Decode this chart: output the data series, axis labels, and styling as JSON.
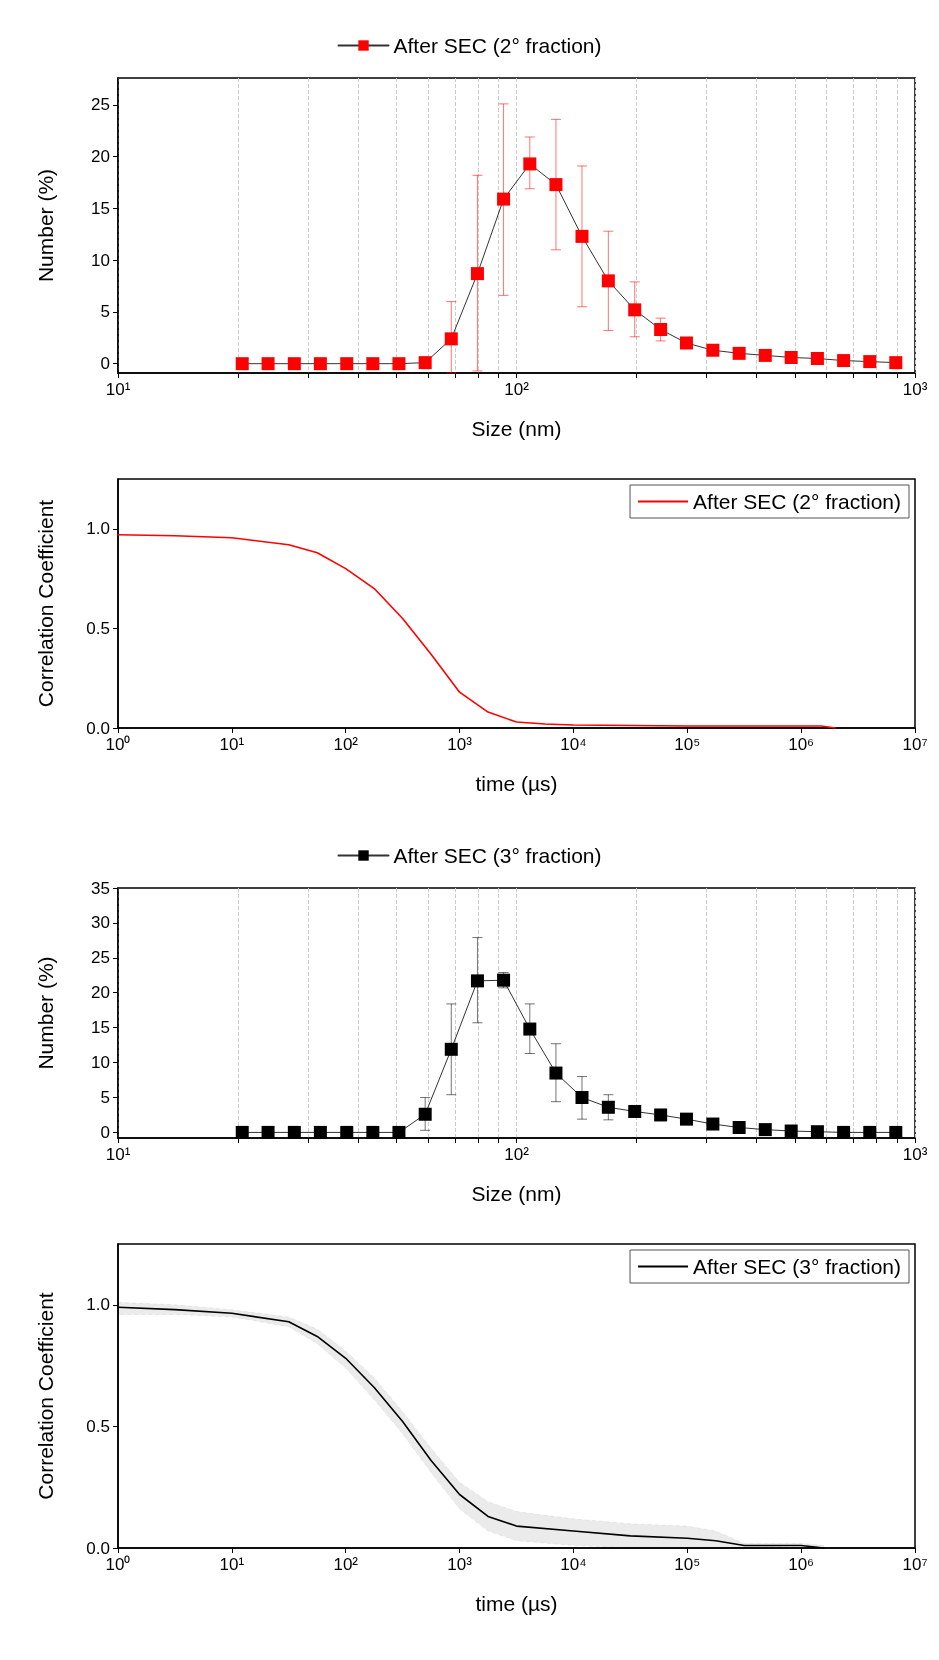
{
  "chart_data": [
    {
      "type": "line",
      "xlabel": "Size (nm)",
      "ylabel": "Number (%)",
      "log": "x",
      "grid": "x",
      "legend": "top",
      "marker": "square",
      "line_style": "solid",
      "x": [
        20.5,
        23.8,
        27.7,
        32.2,
        37.5,
        43.6,
        50.7,
        59.0,
        68.6,
        79.8,
        92.8,
        108,
        125.6,
        146,
        170,
        198,
        230,
        267,
        311,
        362,
        421,
        489,
        569,
        662,
        770,
        895
      ],
      "series": [
        {
          "name": "After SEC (2° fraction)",
          "color": "#ff0000",
          "values": [
            0,
            0,
            0,
            0,
            0,
            0,
            0,
            0.1,
            2.4,
            8.7,
            15.9,
            19.3,
            17.3,
            12.3,
            8.0,
            5.2,
            3.3,
            2.0,
            1.3,
            1.0,
            0.8,
            0.6,
            0.5,
            0.3,
            0.2,
            0.1
          ],
          "errors": [
            null,
            null,
            null,
            null,
            null,
            null,
            null,
            null,
            [
              -0.9,
              6.0
            ],
            [
              -0.7,
              18.2
            ],
            [
              6.6,
              25.1
            ],
            [
              16.9,
              21.9
            ],
            [
              11.0,
              23.6
            ],
            [
              5.5,
              19.1
            ],
            [
              3.2,
              12.8
            ],
            [
              2.6,
              7.9
            ],
            [
              2.2,
              4.4
            ],
            null,
            null,
            null,
            null,
            null,
            null,
            null,
            null,
            null
          ]
        }
      ],
      "xlim": [
        10,
        1000
      ],
      "xticks": [
        {
          "value": 10,
          "label": "10¹"
        },
        {
          "value": 20,
          "label": null
        },
        {
          "value": 30,
          "label": null
        },
        {
          "value": 40,
          "label": null
        },
        {
          "value": 50,
          "label": null
        },
        {
          "value": 60,
          "label": null
        },
        {
          "value": 70,
          "label": null
        },
        {
          "value": 80,
          "label": null
        },
        {
          "value": 90,
          "label": null
        },
        {
          "value": 100,
          "label": "10²"
        },
        {
          "value": 200,
          "label": null
        },
        {
          "value": 300,
          "label": null
        },
        {
          "value": 400,
          "label": null
        },
        {
          "value": 500,
          "label": null
        },
        {
          "value": 600,
          "label": null
        },
        {
          "value": 700,
          "label": null
        },
        {
          "value": 800,
          "label": null
        },
        {
          "value": 900,
          "label": null
        },
        {
          "value": 1000,
          "label": "10³"
        }
      ],
      "ylim": [
        -0.9,
        27.6
      ],
      "yticks": [
        0,
        5,
        10,
        15,
        20,
        25
      ]
    },
    {
      "type": "line",
      "xlabel": "time (µs)",
      "ylabel": "Correlation Coefficient",
      "log": "x",
      "legend": "top right",
      "marker": "none",
      "line_style": "solid",
      "x": [
        1,
        3.16,
        10,
        31.6,
        56.2,
        100,
        178,
        316,
        562,
        1000,
        1778,
        3162,
        5623,
        10000,
        100000,
        1000000,
        1500000,
        2000000
      ],
      "series": [
        {
          "name": "After SEC (2° fraction)",
          "color": "#ff0000",
          "values": [
            0.97,
            0.965,
            0.955,
            0.92,
            0.88,
            0.8,
            0.7,
            0.55,
            0.37,
            0.18,
            0.08,
            0.03,
            0.02,
            0.015,
            0.01,
            0.01,
            0.01,
            0.0
          ]
        }
      ],
      "xlim": [
        1,
        10000000
      ],
      "xticks": [
        {
          "value": 1,
          "label": "10⁰"
        },
        {
          "value": 10,
          "label": "10¹"
        },
        {
          "value": 100,
          "label": "10²"
        },
        {
          "value": 1000,
          "label": "10³"
        },
        {
          "value": 10000,
          "label": "10⁴"
        },
        {
          "value": 100000,
          "label": "10⁵"
        },
        {
          "value": 1000000,
          "label": "10⁶"
        },
        {
          "value": 10000000,
          "label": "10⁷"
        }
      ],
      "ylim": [
        0,
        1.25
      ],
      "yticks": [
        {
          "value": 0,
          "label": "0.0"
        },
        {
          "value": 0.5,
          "label": "0.5"
        },
        {
          "value": 1,
          "label": "1.0"
        }
      ]
    },
    {
      "type": "line",
      "xlabel": "Size (nm)",
      "ylabel": "Number (%)",
      "log": "x",
      "grid": "x",
      "legend": "top",
      "marker": "square",
      "line_style": "solid",
      "x": [
        20.5,
        23.8,
        27.7,
        32.2,
        37.5,
        43.6,
        50.7,
        59.0,
        68.6,
        79.8,
        92.8,
        108,
        125.6,
        146,
        170,
        198,
        230,
        267,
        311,
        362,
        421,
        489,
        569,
        662,
        770,
        895
      ],
      "series": [
        {
          "name": "After SEC (3° fraction)",
          "color": "#000000",
          "values": [
            0,
            0,
            0,
            0,
            0,
            0,
            0,
            2.6,
            11.9,
            21.7,
            21.8,
            14.8,
            8.5,
            5.0,
            3.6,
            3.0,
            2.5,
            1.9,
            1.2,
            0.7,
            0.4,
            0.2,
            0.1,
            0,
            0,
            0
          ],
          "errors": [
            null,
            null,
            null,
            null,
            null,
            null,
            null,
            [
              0.3,
              5.0
            ],
            [
              5.4,
              18.4
            ],
            [
              15.7,
              27.9
            ],
            [
              20.7,
              22.9
            ],
            [
              11.3,
              18.4
            ],
            [
              4.4,
              12.7
            ],
            [
              1.9,
              8.0
            ],
            [
              1.8,
              5.4
            ],
            [
              2.2,
              3.8
            ],
            null,
            null,
            null,
            null,
            null,
            null,
            null,
            null,
            null,
            null
          ]
        }
      ],
      "xlim": [
        10,
        1000
      ],
      "xticks": [
        {
          "value": 10,
          "label": "10¹"
        },
        {
          "value": 20,
          "label": null
        },
        {
          "value": 30,
          "label": null
        },
        {
          "value": 40,
          "label": null
        },
        {
          "value": 50,
          "label": null
        },
        {
          "value": 60,
          "label": null
        },
        {
          "value": 70,
          "label": null
        },
        {
          "value": 80,
          "label": null
        },
        {
          "value": 90,
          "label": null
        },
        {
          "value": 100,
          "label": "10²"
        },
        {
          "value": 200,
          "label": null
        },
        {
          "value": 300,
          "label": null
        },
        {
          "value": 400,
          "label": null
        },
        {
          "value": 500,
          "label": null
        },
        {
          "value": 600,
          "label": null
        },
        {
          "value": 700,
          "label": null
        },
        {
          "value": 800,
          "label": null
        },
        {
          "value": 900,
          "label": null
        },
        {
          "value": 1000,
          "label": "10³"
        }
      ],
      "ylim": [
        -0.8,
        35
      ],
      "yticks": [
        0,
        5,
        10,
        15,
        20,
        25,
        30,
        35
      ]
    },
    {
      "type": "line",
      "xlabel": "time (µs)",
      "ylabel": "Correlation Coefficient",
      "log": "x",
      "legend": "top right",
      "marker": "none",
      "line_style": "solid",
      "x": [
        1,
        3.16,
        10,
        31.6,
        56.2,
        100,
        178,
        316,
        562,
        1000,
        1778,
        3162,
        10000,
        31623,
        100000,
        177828,
        316228,
        1000000,
        1584893
      ],
      "series": [
        {
          "name": "After SEC (3° fraction)",
          "color": "#000000",
          "values": [
            0.99,
            0.98,
            0.965,
            0.93,
            0.87,
            0.78,
            0.66,
            0.52,
            0.36,
            0.22,
            0.13,
            0.09,
            0.07,
            0.05,
            0.04,
            0.03,
            0.01,
            0.01,
            0.0
          ],
          "upper": [
            1.01,
            1.0,
            0.98,
            0.95,
            0.9,
            0.81,
            0.7,
            0.56,
            0.41,
            0.27,
            0.19,
            0.15,
            0.12,
            0.1,
            0.09,
            0.07,
            0.02,
            0.02,
            0.01
          ],
          "lower": [
            0.96,
            0.96,
            0.95,
            0.91,
            0.84,
            0.74,
            0.61,
            0.47,
            0.31,
            0.16,
            0.07,
            0.03,
            0.01,
            0.0,
            0.0,
            0.0,
            0.0,
            0.01,
            0.0
          ]
        }
      ],
      "xlim": [
        1,
        10000000
      ],
      "xticks": [
        {
          "value": 1,
          "label": "10⁰"
        },
        {
          "value": 10,
          "label": "10¹"
        },
        {
          "value": 100,
          "label": "10²"
        },
        {
          "value": 1000,
          "label": "10³"
        },
        {
          "value": 10000,
          "label": "10⁴"
        },
        {
          "value": 100000,
          "label": "10⁵"
        },
        {
          "value": 1000000,
          "label": "10⁶"
        },
        {
          "value": 10000000,
          "label": "10⁷"
        }
      ],
      "ylim": [
        0,
        1.25
      ],
      "yticks": [
        {
          "value": 0,
          "label": "0.0"
        },
        {
          "value": 0.5,
          "label": "0.5"
        },
        {
          "value": 1,
          "label": "1.0"
        }
      ]
    }
  ]
}
